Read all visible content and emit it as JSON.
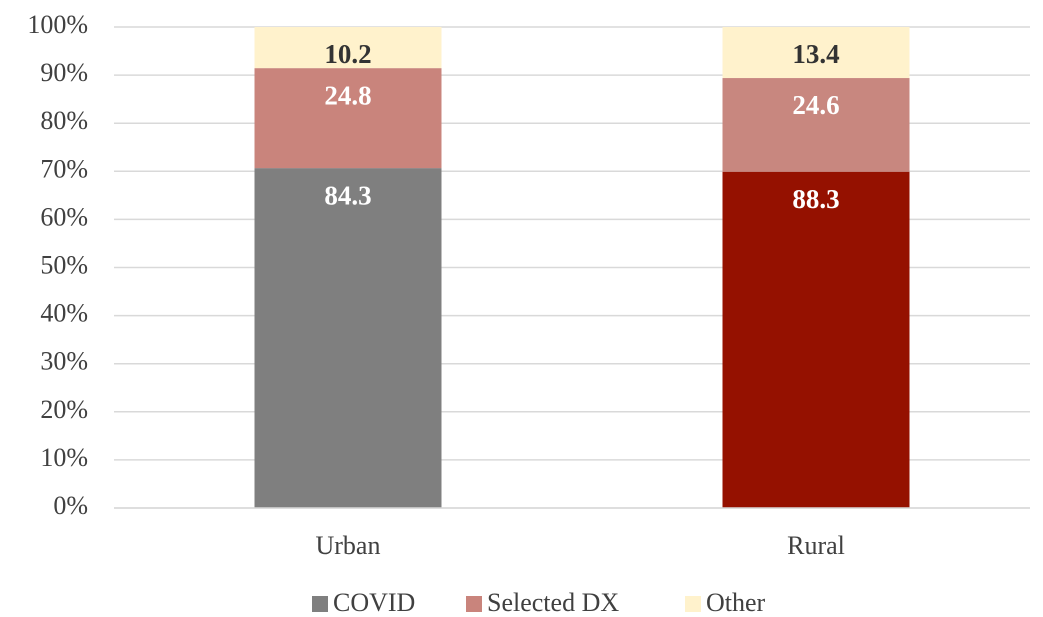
{
  "chart_data": {
    "type": "bar",
    "stacking": "percent",
    "categories": [
      "Urban",
      "Rural"
    ],
    "series": [
      {
        "name": "COVID",
        "color": "#7f7f7f",
        "colors": [
          "#7f7f7f",
          "#951100"
        ],
        "label_color": "#ffffff",
        "values": [
          84.3,
          88.3
        ]
      },
      {
        "name": "Selected DX",
        "color": "#c9847c",
        "colors": [
          "#c9847c",
          "#c8877f"
        ],
        "label_color": "#ffffff",
        "values": [
          24.8,
          24.6
        ]
      },
      {
        "name": "Other",
        "color": "#fff2cc",
        "colors": [
          "#fff2cc",
          "#fff2cc"
        ],
        "label_color": "#333333",
        "values": [
          10.2,
          13.4
        ]
      }
    ],
    "ylim": [
      0,
      100
    ],
    "yticks": [
      {
        "value": 0,
        "label": "0%"
      },
      {
        "value": 10,
        "label": "10%"
      },
      {
        "value": 20,
        "label": "20%"
      },
      {
        "value": 30,
        "label": "30%"
      },
      {
        "value": 40,
        "label": "40%"
      },
      {
        "value": 50,
        "label": "50%"
      },
      {
        "value": 60,
        "label": "60%"
      },
      {
        "value": 70,
        "label": "70%"
      },
      {
        "value": 80,
        "label": "80%"
      },
      {
        "value": 90,
        "label": "90%"
      },
      {
        "value": 100,
        "label": "100%"
      }
    ],
    "grid": true,
    "legend": "bottom"
  }
}
